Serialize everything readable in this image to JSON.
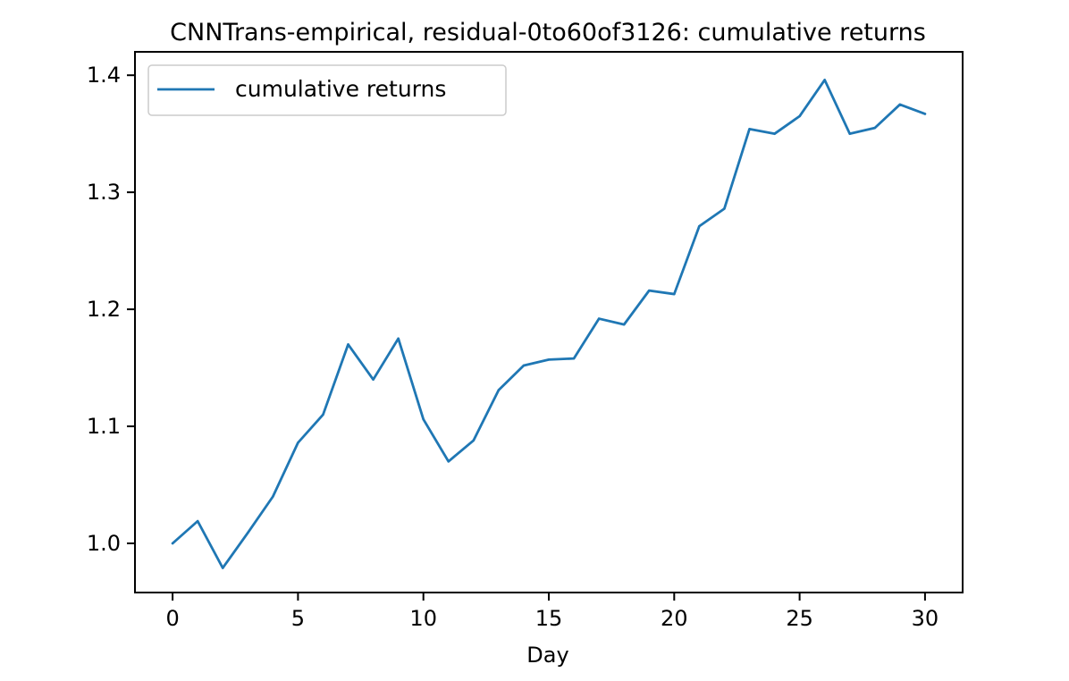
{
  "chart_data": {
    "type": "line",
    "title": "CNNTrans-empirical, residual-0to60of3126: cumulative returns",
    "xlabel": "Day",
    "ylabel": "",
    "xlim": [
      -1.5,
      31.5
    ],
    "ylim": [
      0.958,
      1.42
    ],
    "x_ticks": [
      0,
      5,
      10,
      15,
      20,
      25,
      30
    ],
    "y_ticks": [
      1.0,
      1.1,
      1.2,
      1.3,
      1.4
    ],
    "x_tick_labels": [
      "0",
      "5",
      "10",
      "15",
      "20",
      "25",
      "30"
    ],
    "y_tick_labels": [
      "1.0",
      "1.1",
      "1.2",
      "1.3",
      "1.4"
    ],
    "grid": false,
    "legend_position": "upper-left",
    "series": [
      {
        "name": "cumulative returns",
        "color": "#1f77b4",
        "x": [
          0,
          1,
          2,
          3,
          4,
          5,
          6,
          7,
          8,
          9,
          10,
          11,
          12,
          13,
          14,
          15,
          16,
          17,
          18,
          19,
          20,
          21,
          22,
          23,
          24,
          25,
          26,
          27,
          28,
          29,
          30
        ],
        "y": [
          1.0,
          1.019,
          0.979,
          1.009,
          1.04,
          1.086,
          1.11,
          1.17,
          1.14,
          1.175,
          1.106,
          1.07,
          1.088,
          1.131,
          1.152,
          1.157,
          1.158,
          1.192,
          1.187,
          1.216,
          1.213,
          1.271,
          1.286,
          1.354,
          1.35,
          1.365,
          1.396,
          1.35,
          1.355,
          1.375,
          1.367
        ]
      }
    ]
  }
}
